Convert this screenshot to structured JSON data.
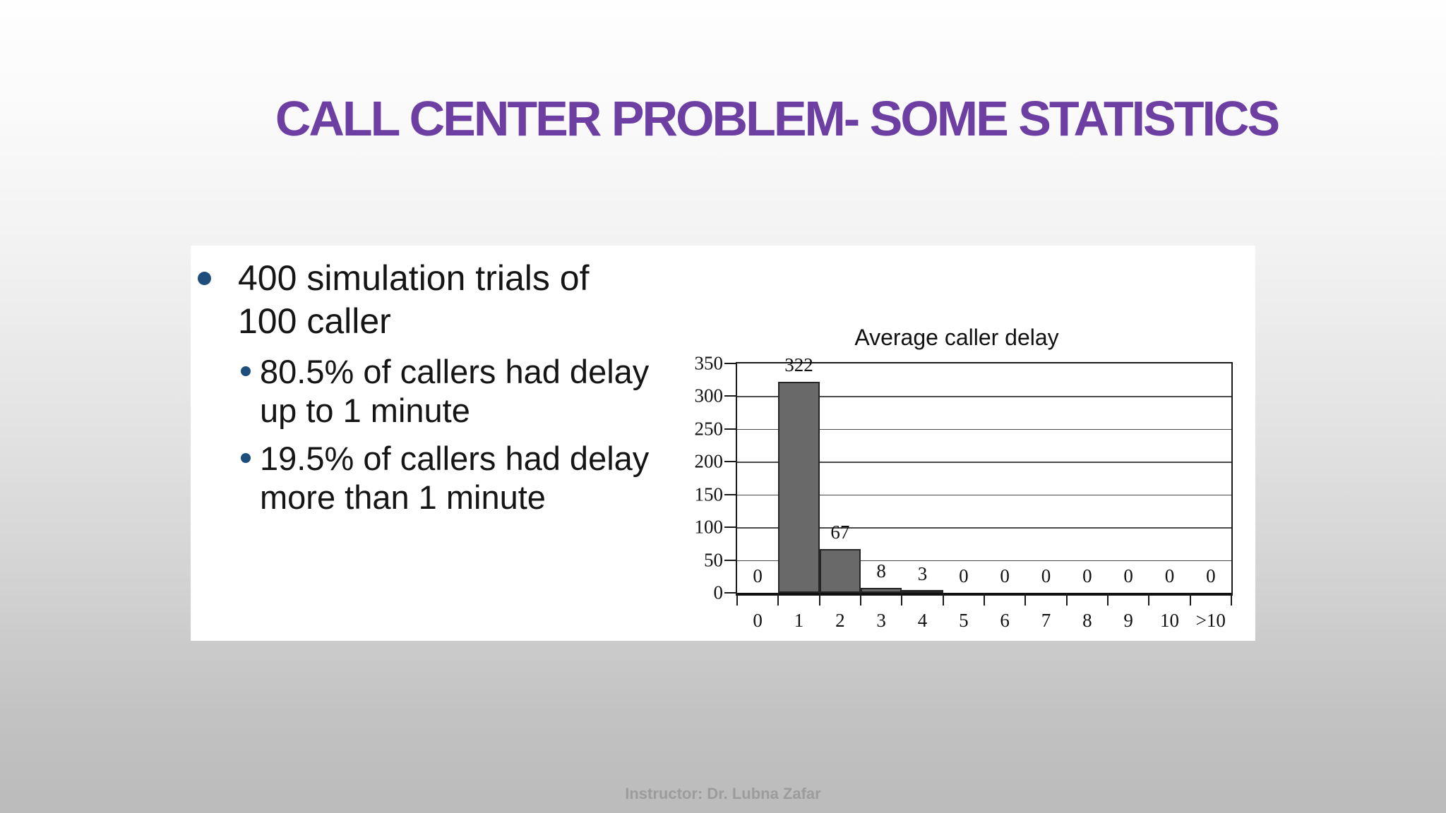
{
  "slide": {
    "title": "CALL CENTER PROBLEM- SOME STATISTICS",
    "footer": "Instructor: Dr. Lubna Zafar",
    "colors": {
      "title_purple": "#6e3fa3",
      "bullet_dot_navy": "#1d4d7c",
      "bar_gray": "#696969",
      "footer_gray": "#9c9c9c",
      "background_top": "#fefefe",
      "background_bottom": "#bbbbbb"
    }
  },
  "bullets": [
    {
      "level": 1,
      "lines": [
        "400 simulation trials of",
        "100 caller"
      ]
    },
    {
      "level": 2,
      "lines": [
        "80.5% of callers had delay",
        "up to 1 minute"
      ]
    },
    {
      "level": 2,
      "lines": [
        "19.5% of callers had delay",
        "more than 1 minute"
      ]
    }
  ],
  "chart_data": {
    "type": "bar",
    "title": "Average caller delay",
    "categories": [
      "0",
      "1",
      "2",
      "3",
      "4",
      "5",
      "6",
      "7",
      "8",
      "9",
      "10",
      ">10"
    ],
    "values": [
      0,
      322,
      67,
      8,
      3,
      0,
      0,
      0,
      0,
      0,
      0,
      0
    ],
    "xlabel": "",
    "ylabel": "",
    "ylim": [
      0,
      350
    ],
    "yticks": [
      0,
      50,
      100,
      150,
      200,
      250,
      300,
      350
    ],
    "grid": true,
    "data_labels": true,
    "legend": false
  }
}
